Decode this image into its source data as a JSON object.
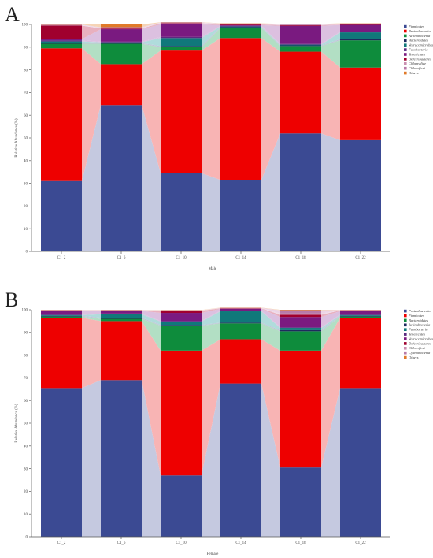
{
  "chart_data": [
    {
      "type": "bar",
      "panel": "A",
      "stacked": true,
      "categories": [
        "C1_2",
        "C1_6",
        "C1_10",
        "C1_14",
        "C1_18",
        "C1_22"
      ],
      "xlabel": "Male",
      "ylabel": "Relative Abundance (%)",
      "ylim": [
        0,
        100
      ],
      "yticks": [
        0,
        10,
        20,
        30,
        40,
        50,
        60,
        70,
        80,
        90,
        100
      ],
      "grid": false,
      "legend_position": "right",
      "series": [
        {
          "name": "Firmicutes",
          "color": "#3b4a93",
          "values": [
            31,
            64.5,
            34.5,
            31.5,
            52,
            49
          ]
        },
        {
          "name": "Proteobacteria",
          "color": "#ee0000",
          "values": [
            58.5,
            18,
            54,
            62.5,
            36,
            32
          ]
        },
        {
          "name": "Actinobacteria",
          "color": "#0e8c3c",
          "values": [
            2,
            9,
            1.5,
            4.5,
            2.5,
            12
          ]
        },
        {
          "name": "Bacteroidetes",
          "color": "#1e2a5e",
          "values": [
            0.5,
            0.3,
            0.5,
            0.3,
            0.3,
            0.5
          ]
        },
        {
          "name": "Verrucomicrobia",
          "color": "#10787a",
          "values": [
            0.5,
            0.3,
            3.5,
            0.3,
            0.3,
            3
          ]
        },
        {
          "name": "Fusobacteria",
          "color": "#5a2a80",
          "values": [
            0.5,
            0.3,
            0.5,
            0.3,
            0.3,
            0.3
          ]
        },
        {
          "name": "Tenericutes",
          "color": "#7a1a80",
          "values": [
            0.5,
            5.5,
            5.5,
            0.3,
            8,
            3
          ]
        },
        {
          "name": "Deferribacteres",
          "color": "#a0002e",
          "values": [
            6,
            0.3,
            0.5,
            0.3,
            0.3,
            0.2
          ]
        },
        {
          "name": "Chlamydiae",
          "color": "#c98fb0",
          "values": [
            0.2,
            0.3,
            0.2,
            0.2,
            0.2,
            0.2
          ]
        },
        {
          "name": "Chloroflexi",
          "color": "#b87aa8",
          "values": [
            0.2,
            0.3,
            0.2,
            0.2,
            0.2,
            0.2
          ]
        },
        {
          "name": "Others",
          "color": "#e07a2a",
          "values": [
            0.1,
            1.2,
            0.1,
            0.1,
            0.1,
            0.1
          ]
        }
      ]
    },
    {
      "type": "bar",
      "panel": "B",
      "stacked": true,
      "categories": [
        "C1_2",
        "C1_6",
        "C1_10",
        "C1_14",
        "C1_18",
        "C1_22"
      ],
      "xlabel": "Female",
      "ylabel": "Relative Abundance (%)",
      "ylim": [
        0,
        100
      ],
      "yticks": [
        0,
        10,
        20,
        30,
        40,
        50,
        60,
        70,
        80,
        90,
        100
      ],
      "grid": false,
      "legend_position": "right",
      "series": [
        {
          "name": "Proteobacteria",
          "color": "#3b4a93",
          "values": [
            65.5,
            69,
            27,
            67.5,
            30.5,
            65.5
          ]
        },
        {
          "name": "Firmicutes",
          "color": "#ee0000",
          "values": [
            31,
            26,
            55,
            19.5,
            51.5,
            31
          ]
        },
        {
          "name": "Bacteroidetes",
          "color": "#0e8c3c",
          "values": [
            0.5,
            1,
            11,
            7,
            8.5,
            0.5
          ]
        },
        {
          "name": "Actinobacteria",
          "color": "#1e2a5e",
          "values": [
            0.3,
            0.5,
            0.3,
            0.3,
            0.5,
            0.3
          ]
        },
        {
          "name": "Fusobacteria",
          "color": "#10787a",
          "values": [
            0.3,
            1.5,
            1.5,
            5,
            1,
            0.3
          ]
        },
        {
          "name": "Tenericutes",
          "color": "#5a2a80",
          "values": [
            0.3,
            0.3,
            0.3,
            0.3,
            0.3,
            0.3
          ]
        },
        {
          "name": "Verrucomicrobia",
          "color": "#7a1a80",
          "values": [
            1.5,
            1.2,
            3.5,
            0.8,
            4.5,
            1.5
          ]
        },
        {
          "name": "Deferribacteres",
          "color": "#a0002e",
          "values": [
            0.3,
            0.2,
            1,
            0.2,
            1,
            0.3
          ]
        },
        {
          "name": "Chloroflexi",
          "color": "#c98fb0",
          "values": [
            0.1,
            0.1,
            0.1,
            0.1,
            0.5,
            0.1
          ]
        },
        {
          "name": "Cyanobacteria",
          "color": "#b87aa8",
          "values": [
            0.1,
            0.1,
            0.1,
            0.1,
            1.5,
            0.1
          ]
        },
        {
          "name": "Others",
          "color": "#e07a2a",
          "values": [
            0.1,
            0.1,
            0.1,
            0.1,
            0.2,
            0.1
          ]
        }
      ]
    }
  ]
}
